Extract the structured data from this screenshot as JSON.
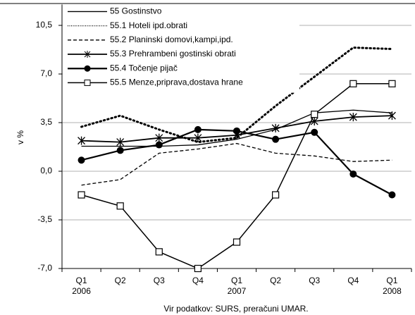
{
  "chart_data": {
    "type": "line",
    "y_label": "v %",
    "source": "Vir podatkov: SURS, preračuni UMAR.",
    "categories": [
      "Q1",
      "Q2",
      "Q3",
      "Q4",
      "Q1",
      "Q2",
      "Q3",
      "Q4",
      "Q1"
    ],
    "category_years": [
      "2006",
      null,
      null,
      null,
      "2007",
      null,
      null,
      null,
      "2008"
    ],
    "ylim": [
      -7,
      12
    ],
    "yticks": [
      {
        "value": -7,
        "label": "-7,0"
      },
      {
        "value": -3.5,
        "label": "-3,5"
      },
      {
        "value": 0,
        "label": "0,0"
      },
      {
        "value": 3.5,
        "label": "3,5"
      },
      {
        "value": 7,
        "label": "7,0"
      },
      {
        "value": 10.5,
        "label": "10,5"
      }
    ],
    "grid": true,
    "legend": "upper left",
    "series": [
      {
        "name": "55 Gostinstvo",
        "color": "#000000",
        "dash": "solid",
        "marker": "none",
        "values": [
          1.8,
          1.8,
          1.8,
          1.9,
          2.3,
          3.0,
          4.2,
          4.4,
          4.2
        ]
      },
      {
        "name": "55.1 Hoteli ipd.obrati",
        "color": "#000000",
        "dash": "dotted",
        "marker": "none",
        "values": [
          3.2,
          4.0,
          3.0,
          2.1,
          2.4,
          4.7,
          6.8,
          8.9,
          8.8
        ]
      },
      {
        "name": "55.2 Planinski domovi,kampi,ipd.",
        "color": "#000000",
        "dash": "dashed",
        "marker": "none",
        "values": [
          -1.0,
          -0.6,
          1.3,
          1.6,
          2.0,
          1.3,
          1.1,
          0.7,
          0.8
        ]
      },
      {
        "name": "55.3 Prehrambeni gostinski obrati",
        "color": "#000000",
        "dash": "solid",
        "marker": "star",
        "values": [
          2.2,
          2.1,
          2.4,
          2.4,
          2.6,
          3.1,
          3.6,
          3.9,
          4.0
        ]
      },
      {
        "name": "55.4 Točenje pijač",
        "color": "#000000",
        "dash": "solid",
        "marker": "circle",
        "values": [
          0.8,
          1.5,
          1.9,
          3.0,
          2.9,
          2.3,
          2.8,
          -0.2,
          -1.7
        ]
      },
      {
        "name": "55.5 Menze,priprava,dostava hrane",
        "color": "#000000",
        "dash": "solid",
        "marker": "square",
        "values": [
          -1.7,
          -2.5,
          -5.8,
          -7.0,
          -5.1,
          -1.7,
          4.1,
          6.3,
          6.3
        ]
      }
    ]
  }
}
